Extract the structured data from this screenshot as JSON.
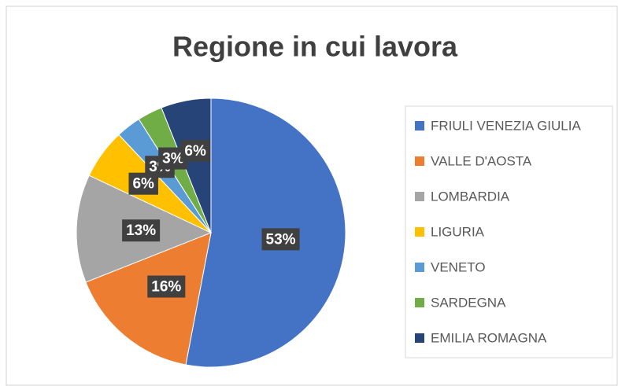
{
  "chart_data": {
    "type": "pie",
    "title": "Regione in cui lavora",
    "categories": [
      "FRIULI VENEZIA GIULIA",
      "VALLE D'AOSTA",
      "LOMBARDIA",
      "LIGURIA",
      "VENETO",
      "SARDEGNA",
      "EMILIA ROMAGNA"
    ],
    "values": [
      53,
      16,
      13,
      6,
      3,
      3,
      6
    ],
    "value_labels": [
      "53%",
      "16%",
      "13%",
      "6%",
      "3%",
      "3%",
      "6%"
    ],
    "colors": [
      "#4472c4",
      "#ed7d31",
      "#a5a5a5",
      "#ffc000",
      "#5b9bd5",
      "#70ad47",
      "#264478"
    ],
    "legend": "right"
  }
}
